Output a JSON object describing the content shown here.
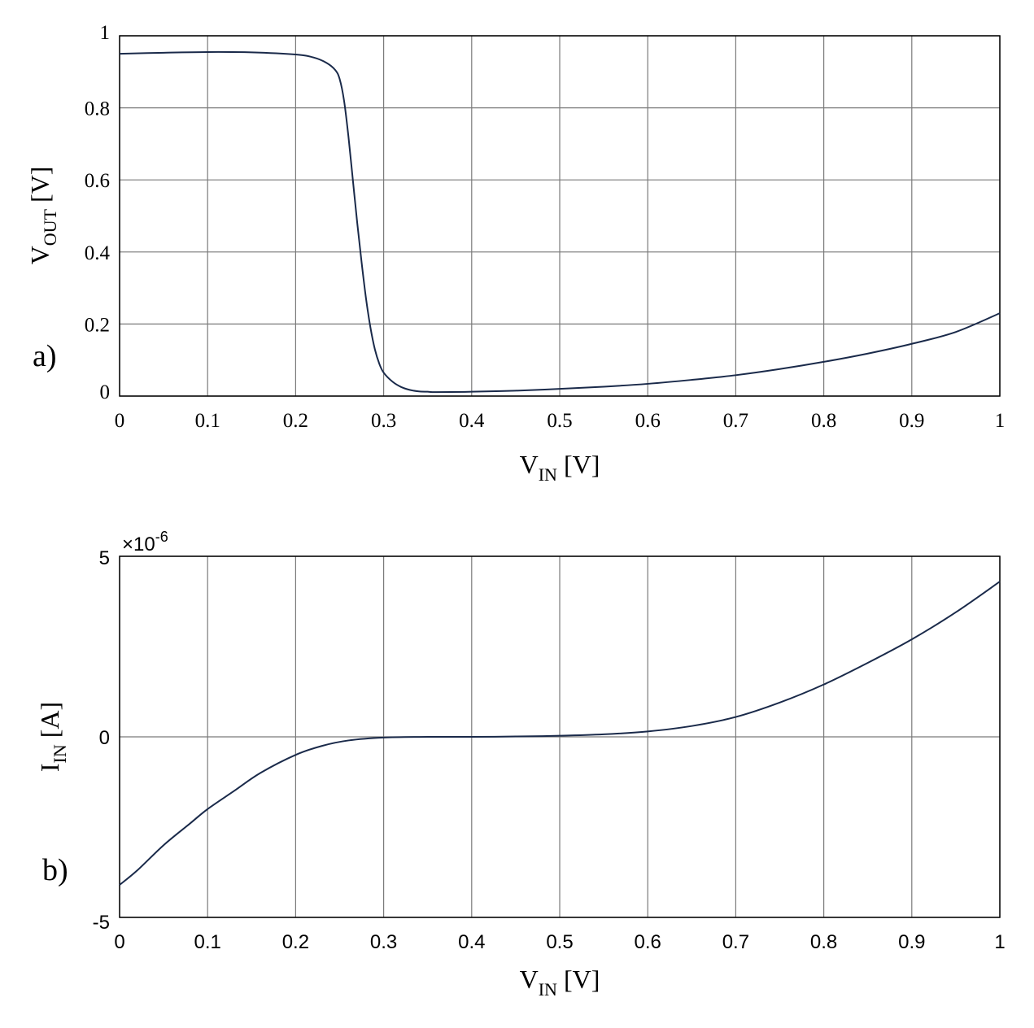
{
  "chart_data": [
    {
      "type": "line",
      "panel_label": "a)",
      "xlabel_main": "V",
      "xlabel_sub": "IN",
      "xlabel_unit": " [V]",
      "ylabel_main": "V",
      "ylabel_sub": "OUT",
      "ylabel_unit": " [V]",
      "xlim": [
        0,
        1
      ],
      "ylim": [
        0,
        1
      ],
      "x_ticks": [
        0,
        0.1,
        0.2,
        0.3,
        0.4,
        0.5,
        0.6,
        0.7,
        0.8,
        0.9,
        1
      ],
      "x_tick_labels": [
        "0",
        "0.1",
        "0.2",
        "0.3",
        "0.4",
        "0.5",
        "0.6",
        "0.7",
        "0.8",
        "0.9",
        "1"
      ],
      "y_ticks": [
        0,
        0.2,
        0.4,
        0.6,
        0.8,
        1
      ],
      "y_tick_labels": [
        "0",
        "0.2",
        "0.4",
        "0.6",
        "0.8",
        "1"
      ],
      "grid": true,
      "color": "#1a2a4a",
      "series": [
        {
          "x": [
            0,
            0.05,
            0.1,
            0.15,
            0.2,
            0.22,
            0.235,
            0.245,
            0.25,
            0.255,
            0.26,
            0.265,
            0.27,
            0.275,
            0.28,
            0.285,
            0.29,
            0.295,
            0.3,
            0.31,
            0.32,
            0.33,
            0.34,
            0.35,
            0.36,
            0.4,
            0.45,
            0.5,
            0.55,
            0.6,
            0.65,
            0.7,
            0.75,
            0.8,
            0.85,
            0.9,
            0.95,
            1.0
          ],
          "y": [
            0.95,
            0.953,
            0.955,
            0.954,
            0.948,
            0.94,
            0.925,
            0.905,
            0.88,
            0.82,
            0.72,
            0.6,
            0.48,
            0.37,
            0.27,
            0.19,
            0.13,
            0.09,
            0.065,
            0.04,
            0.025,
            0.017,
            0.013,
            0.012,
            0.011,
            0.012,
            0.015,
            0.02,
            0.026,
            0.034,
            0.045,
            0.058,
            0.075,
            0.095,
            0.118,
            0.145,
            0.178,
            0.23
          ]
        }
      ]
    },
    {
      "type": "line",
      "panel_label": "b)",
      "scale_base": "×10",
      "scale_exp": "-6",
      "xlabel_main": "V",
      "xlabel_sub": "IN",
      "xlabel_unit": " [V]",
      "ylabel_main": "I",
      "ylabel_sub": "IN",
      "ylabel_unit": " [A]",
      "xlim": [
        0,
        1
      ],
      "ylim": [
        -5,
        5
      ],
      "x_ticks": [
        0,
        0.1,
        0.2,
        0.3,
        0.4,
        0.5,
        0.6,
        0.7,
        0.8,
        0.9,
        1
      ],
      "x_tick_labels": [
        "0",
        "0.1",
        "0.2",
        "0.3",
        "0.4",
        "0.5",
        "0.6",
        "0.7",
        "0.8",
        "0.9",
        "1"
      ],
      "y_ticks": [
        -5,
        0,
        5
      ],
      "y_tick_labels": [
        "-5",
        "0",
        "5"
      ],
      "grid": true,
      "color": "#1a2a4a",
      "series": [
        {
          "x": [
            0,
            0.02,
            0.05,
            0.08,
            0.1,
            0.13,
            0.16,
            0.2,
            0.23,
            0.26,
            0.3,
            0.35,
            0.4,
            0.45,
            0.5,
            0.55,
            0.6,
            0.65,
            0.7,
            0.75,
            0.8,
            0.85,
            0.9,
            0.95,
            1.0
          ],
          "y": [
            -4.1,
            -3.7,
            -3.0,
            -2.4,
            -2.0,
            -1.5,
            -1.0,
            -0.5,
            -0.25,
            -0.1,
            -0.02,
            0.0,
            0.0,
            0.01,
            0.03,
            0.07,
            0.15,
            0.3,
            0.55,
            0.95,
            1.45,
            2.05,
            2.7,
            3.45,
            4.3
          ]
        }
      ]
    }
  ]
}
